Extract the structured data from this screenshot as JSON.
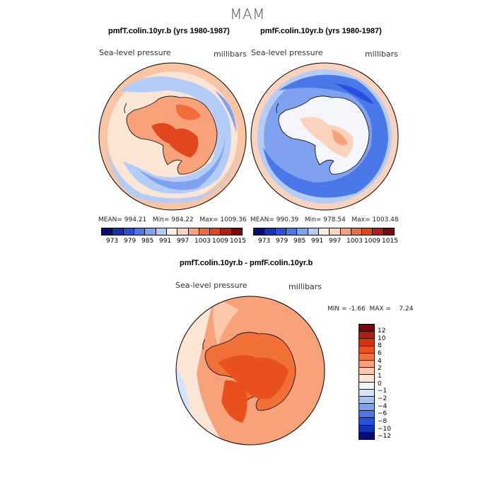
{
  "season": "MAM",
  "colors": {
    "palette13": [
      "#0a0a78",
      "#1432b4",
      "#2850dc",
      "#4a78e8",
      "#7fa2f0",
      "#b4cdf8",
      "#fbefe6",
      "#fbd2bc",
      "#f8a27a",
      "#f06c3a",
      "#e2461e",
      "#b41e0e",
      "#7e0608"
    ],
    "palette17": [
      "#7e0608",
      "#b41e0e",
      "#d43012",
      "#e8501e",
      "#f07038",
      "#f8a27a",
      "#fbc8aa",
      "#fbe6d6",
      "#f4f6fb",
      "#d4e4fb",
      "#a8c4f6",
      "#7fa2f0",
      "#4a78e8",
      "#2850dc",
      "#1432b4",
      "#0a0a78"
    ]
  },
  "chart_data": [
    {
      "type": "heatmap",
      "title": "pmfT.colin.10yr.b (yrs 1980-1987)",
      "field": "Sea-level pressure",
      "units": "millibars",
      "stats": {
        "mean_label": "MEAN=",
        "mean": "994.21",
        "min_label": "Min=",
        "min": "984.22",
        "max_label": "Max=",
        "max": "1009.36"
      },
      "colorbar_levels": [
        "973",
        "979",
        "985",
        "991",
        "997",
        "1003",
        "1009",
        "1015"
      ]
    },
    {
      "type": "heatmap",
      "title": "pmfF.colin.10yr.b (yrs 1980-1987)",
      "field": "Sea-level pressure",
      "units": "millibars",
      "stats": {
        "mean_label": "MEAN=",
        "mean": "990.39",
        "min_label": "Min=",
        "min": "978.54",
        "max_label": "Max=",
        "max": "1003.48"
      },
      "colorbar_levels": [
        "973",
        "979",
        "985",
        "991",
        "997",
        "1003",
        "1009",
        "1015"
      ]
    },
    {
      "type": "heatmap",
      "title": "pmfT.colin.10yr.b - pmfF.colin.10yr.b",
      "field": "Sea-level pressure",
      "units": "millibars",
      "stats": {
        "min_label": "MIN =",
        "min": "-1.66",
        "max_label": "MAX =",
        "max": "7.24"
      },
      "colorbar_levels": [
        "12",
        "10",
        "8",
        "6",
        "4",
        "2",
        "1",
        "0",
        "−1",
        "−2",
        "−4",
        "−6",
        "−8",
        "−10",
        "−12"
      ]
    }
  ]
}
